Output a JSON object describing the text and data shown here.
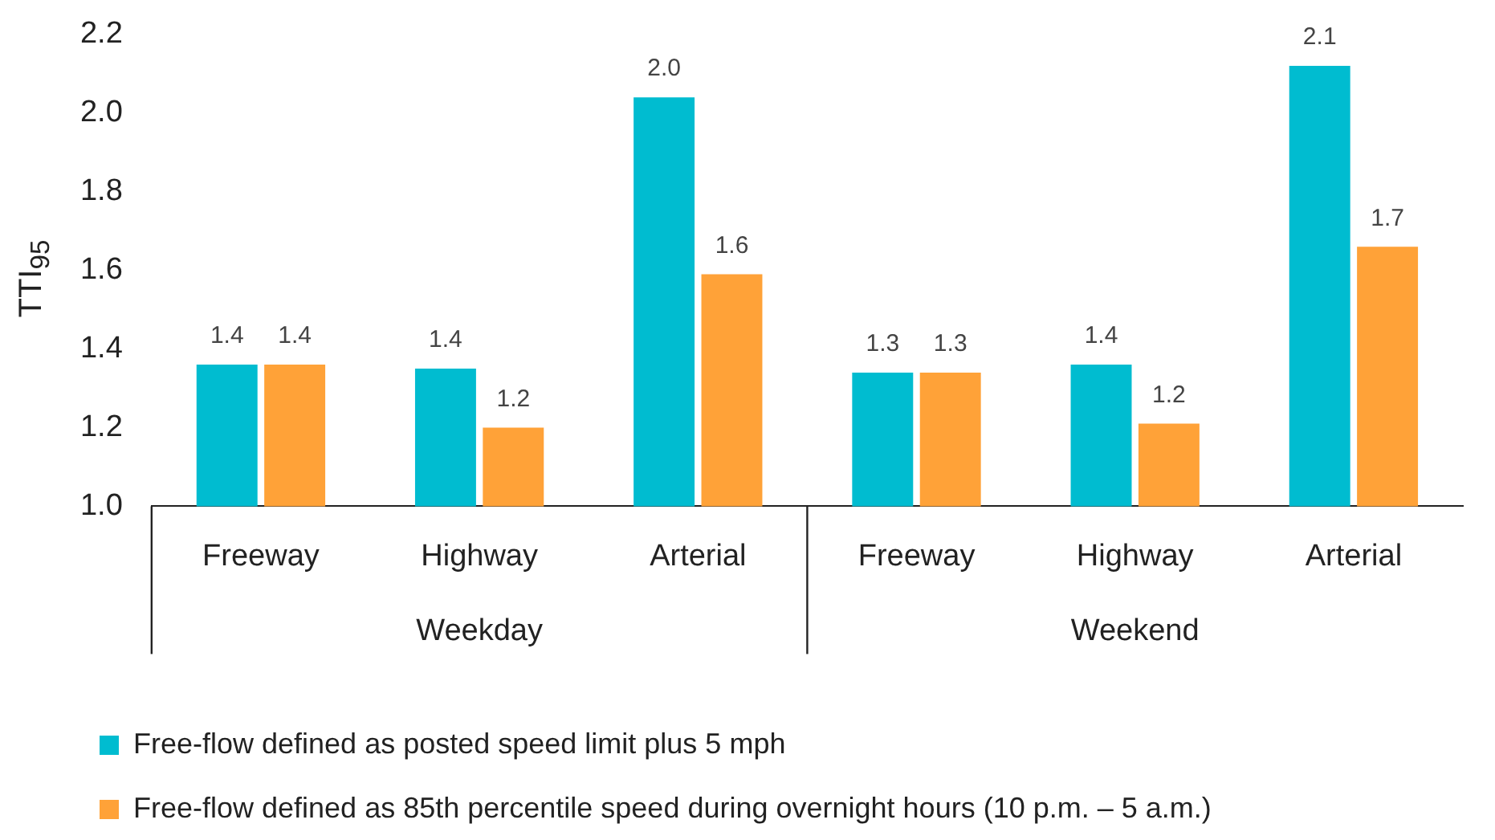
{
  "chart_data": {
    "type": "bar",
    "ylabel": "TTI$_{95}$",
    "categories": [
      "Freeway",
      "Highway",
      "Arterial",
      "Freeway",
      "Highway",
      "Arterial"
    ],
    "annotations": [
      "Weekday",
      "Weekend"
    ],
    "series": [
      {
        "name": "Free-flow defined as posted speed limit plus 5 mph",
        "color": "#00bcd0",
        "values": [
          1.36,
          1.35,
          2.04,
          1.34,
          1.36,
          2.12
        ],
        "value_labels": [
          "1.4",
          "1.4",
          "2.0",
          "1.3",
          "1.4",
          "2.1"
        ]
      },
      {
        "name": "Free-flow defined as 85th percentile speed during overnight hours (10 p.m. – 5 a.m.)",
        "color": "#ffa238",
        "values": [
          1.36,
          1.2,
          1.59,
          1.34,
          1.21,
          1.66
        ],
        "value_labels": [
          "1.4",
          "1.2",
          "1.6",
          "1.3",
          "1.2",
          "1.7"
        ]
      }
    ],
    "ylim": [
      1.0,
      2.2
    ],
    "yticks": [
      {
        "value": 1,
        "label": "1.0"
      },
      {
        "value": 1.2,
        "label": "1.2"
      },
      {
        "value": 1.4,
        "label": "1.4"
      },
      {
        "value": 1.6,
        "label": "1.6"
      },
      {
        "value": 1.8,
        "label": "1.8"
      },
      {
        "value": 2,
        "label": "2.0"
      },
      {
        "value": 2.2,
        "label": "2.2"
      }
    ],
    "grid": false,
    "legend": "bottom"
  }
}
